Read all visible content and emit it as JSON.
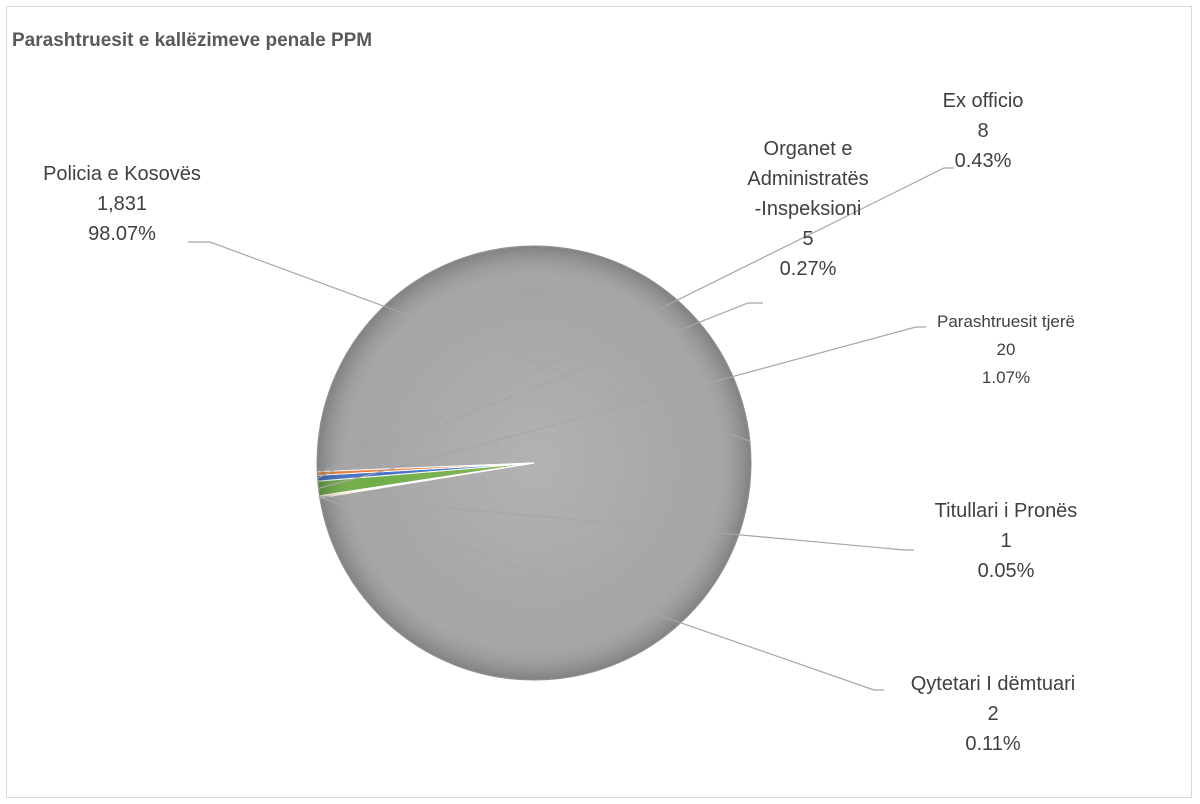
{
  "chart_data": {
    "type": "pie",
    "title": "Parashtruesit e kallëzimeve penale PPM",
    "slices": [
      {
        "name_lines": [
          "Policia e Kosovës"
        ],
        "value": 1831,
        "value_label": "1,831",
        "percent": 98.07,
        "percent_label": "98.07%",
        "color": "#a5a5a5"
      },
      {
        "name_lines": [
          "Qytetari I dëmtuari"
        ],
        "value": 2,
        "value_label": "2",
        "percent": 0.11,
        "percent_label": "0.11%",
        "color": "#ffc000"
      },
      {
        "name_lines": [
          "Titullari i Pronës"
        ],
        "value": 1,
        "value_label": "1",
        "percent": 0.05,
        "percent_label": "0.05%",
        "color": "#5b9bd5"
      },
      {
        "name_lines": [
          "Parashtruesit tjerë"
        ],
        "value": 20,
        "value_label": "20",
        "percent": 1.07,
        "percent_label": "1.07%",
        "color": "#70ad47"
      },
      {
        "name_lines": [
          "Ex officio"
        ],
        "value": 8,
        "value_label": "8",
        "percent": 0.43,
        "percent_label": "0.43%",
        "color": "#4472c4"
      },
      {
        "name_lines": [
          "Organet e",
          "Administratës",
          "-Inspeksioni"
        ],
        "value": 5,
        "value_label": "5",
        "percent": 0.27,
        "percent_label": "0.27%",
        "color": "#ed7d31"
      }
    ],
    "legend": "none",
    "data_labels": "outside-with-leader-lines"
  }
}
